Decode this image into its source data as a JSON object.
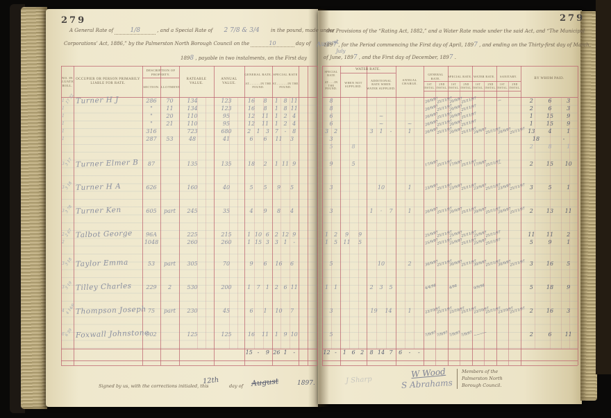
{
  "page": {
    "number_left": "279",
    "number_right": "279"
  },
  "preamble": {
    "left": {
      "l1a": "A General Rate of",
      "l1b": "1/8",
      "l1c": ", and a Special Rate of",
      "l1d": "2 7/8 & 3/4",
      "l1e": "in the pound, made under",
      "l2a": "Corporations’ Act, 1886,” by the Palmerston North Borough Council on the",
      "l2b": "10",
      "l2c": "day of",
      "l2d": "August",
      "l3a": "189",
      "l3b": "8",
      "l3c": ", payable in two instalments, on the First day"
    },
    "right": {
      "l1": "the Provisions of the “Rating Act, 1882,” and a Water Rate made under the said Act, and “The Municipal",
      "l2a": "189",
      "l2b": "7",
      "l2c": ", for the Period commencing the First day of April, 189",
      "l2d": "7",
      "l2e": ", and ending on the Thirty-first day of March,",
      "l3a": "of June, 189",
      "l3b": "7",
      "l3c": "July",
      "l3d": ", and the First day of December, 189",
      "l3e": "7",
      "l3f": "."
    }
  },
  "table": {
    "headers": {
      "roll": "No. in Valuation Roll.",
      "occupier": "Occupier or Person Primarily Liable for Rate.",
      "description": "Description of Property.",
      "section": "Section.",
      "allotment": "Allotment.",
      "rateable": "Rateable Value.",
      "annual": "Annual Value.",
      "general": "General Rate.",
      "general_sub": "at............in the pound.",
      "special": "Special Rate",
      "special_sub": "at............in the pound.",
      "special_pound": "Special Rate",
      "special_pound_sub": "at......in the pound.",
      "water": "Water Rate.",
      "not_supplied": "When Not Supplied.",
      "additional": "Additional Rate When Water Supplied.",
      "annual_charge": "Annual Charge.",
      "pay_groups": [
        "General Rate.",
        "Special Rate.",
        "Water Rate.",
        "Sanitary."
      ],
      "instal_first": "1st Instal.",
      "instal_second": "2nd Instal.",
      "by_whom": "By Whom Paid."
    },
    "rows": [
      {
        "roll": "1",
        "margin": "17 32",
        "name": "Turner H J",
        "sec": "286",
        "allot": "70",
        "rate": "134",
        "ann": "123",
        "gen": "16 8",
        "spec": "1 8 11",
        "spp": "8",
        "notsup": "",
        "addl": "",
        "chg": "",
        "dates": [
          "20/9/97",
          "25/11/97",
          "20/9/97",
          "25/11/97",
          "",
          "",
          "—",
          ""
        ],
        "total": "2 6 3",
        "pencil": false
      },
      {
        "roll": "1",
        "margin": "",
        "name": "",
        "sec": "\"",
        "allot": "11",
        "rate": "134",
        "ann": "123",
        "gen": "16 8",
        "spec": "1 8 11",
        "spp": "8",
        "notsup": "",
        "addl": "",
        "chg": "",
        "dates": [
          "20/9/97",
          "25/11/97",
          "20/9/97",
          "25/11/97",
          "",
          "",
          "",
          ""
        ],
        "total": "2 6 3",
        "pencil": false
      },
      {
        "roll": "1",
        "margin": "",
        "name": "",
        "sec": "\"",
        "allot": "20",
        "rate": "110",
        "ann": "95",
        "gen": "12 11",
        "spec": "1 2 4",
        "spp": "6",
        "notsup": "",
        "addl": "~",
        "chg": "",
        "dates": [
          "20/9/97",
          "25/11/97",
          "20/9/97",
          "25/11/97",
          "",
          "",
          "",
          ""
        ],
        "total": "1 15 9",
        "pencil": false
      },
      {
        "roll": "1",
        "margin": "",
        "name": "",
        "sec": "\"",
        "allot": "21",
        "rate": "110",
        "ann": "95",
        "gen": "12 11",
        "spec": "1 2 4",
        "spp": "6",
        "notsup": "",
        "addl": "~",
        "chg": "~",
        "dates": [
          "20/9/97",
          "25/11/97",
          "20/9/97",
          "25/11/97",
          "",
          "",
          "",
          ""
        ],
        "total": "1 15 9",
        "pencil": false
      },
      {
        "roll": "1",
        "margin": "",
        "name": "",
        "sec": "316",
        "allot": "",
        "rate": "723",
        "ann": "680",
        "gen": "2 1 3",
        "spec": "7 - 8",
        "spp": "3 2",
        "notsup": "",
        "addl": "3 1 -",
        "chg": "1",
        "dates": [
          "20/9/97",
          "25/11/97",
          "20/9/97",
          "25/11/97",
          "24/9/97",
          "25/11/97",
          "20/9/97",
          "25/11/97"
        ],
        "total": "13 4 1",
        "pencil": false
      },
      {
        "roll": "1",
        "margin": "",
        "name": "",
        "sec": "287",
        "allot": "53",
        "rate": "48",
        "ann": "41",
        "gen": "6 6",
        "spec": "11 3",
        "spp": "3",
        "notsup": "",
        "addl": "",
        "chg": "",
        "dates": [
          "",
          "",
          "",
          "",
          "",
          "",
          "",
          ""
        ],
        "total": "18 -",
        "pencil": false
      },
      {
        "roll": "",
        "margin": "",
        "name": "",
        "sec": "",
        "allot": "",
        "rate": "",
        "ann": "",
        "gen": "",
        "spec": "",
        "spp": "5",
        "notsup": "8",
        "addl": "",
        "chg": "",
        "dates": [
          "",
          "",
          "",
          "",
          "",
          "",
          "",
          ""
        ],
        "total": "2 8 1",
        "pencil": true
      },
      {
        "roll": "3",
        "margin": "3 17",
        "name": "Turner Elmer B",
        "sec": "87",
        "allot": "",
        "rate": "135",
        "ann": "135",
        "gen": "18 2",
        "spec": "1 11 9",
        "spp": "9",
        "notsup": "5",
        "addl": "",
        "chg": "",
        "dates": [
          "17/9/97",
          "25/11/97",
          "17/9/97",
          "25/11/97",
          "17/9/97",
          "25/11/97",
          "—",
          ""
        ],
        "total": "2 15 10",
        "pencil": false
      },
      {
        "roll": "3",
        "margin": "3 18",
        "name": "Turner H A",
        "sec": "626",
        "allot": "",
        "rate": "160",
        "ann": "40",
        "gen": "5 5",
        "spec": "9 5",
        "spp": "3",
        "notsup": "",
        "addl": "10",
        "chg": "1",
        "dates": [
          "23/9/97",
          "25/11/97",
          "23/9/97",
          "25/11/97",
          "23/9/97",
          "25/11/97",
          "23/9/97",
          "25/11/97"
        ],
        "total": "3 5 1",
        "pencil": false
      },
      {
        "roll": "3",
        "margin": "3 78",
        "name": "Turner Ken",
        "sec": "605",
        "allot": "part",
        "rate": "245",
        "ann": "35",
        "gen": "4 9",
        "spec": "8 4",
        "spp": "3",
        "notsup": "",
        "addl": "1 · 7",
        "chg": "1",
        "dates": [
          "20/9/97",
          "25/11/97",
          "20/9/97",
          "25/11/97",
          "20/9/97",
          "25/11/97",
          "20/9/97",
          "25/11/97"
        ],
        "total": "2 13 11",
        "pencil": false
      },
      {
        "roll": "2",
        "margin": "2 67",
        "name": "Talbot George",
        "sec": "96A",
        "allot": "",
        "rate": "225",
        "ann": "215",
        "gen": "1 10 6",
        "spec": "2 12 9",
        "spp": "1 2",
        "notsup": "9 9",
        "addl": "",
        "chg": "",
        "dates": [
          "25/9/97",
          "25/11/97",
          "25/9/97",
          "25/11/97",
          "25/9/97",
          "25/11/97",
          "",
          ""
        ],
        "total": "11 11 2",
        "pencil": false
      },
      {
        "roll": "2",
        "margin": "",
        "name": "",
        "sec": "1048",
        "allot": "",
        "rate": "260",
        "ann": "260",
        "gen": "1 15 3",
        "spec": "3 1 -",
        "spp": "1 5",
        "notsup": "11 5",
        "addl": "",
        "chg": "",
        "dates": [
          "25/9/97",
          "25/11/97",
          "25/9/97",
          "25/11/97",
          "25/9/97",
          "25/11/97",
          "",
          ""
        ],
        "total": "5 9 1",
        "pencil": false
      },
      {
        "roll": "3",
        "margin": "3 18",
        "name": "Taylor Emma",
        "sec": "53",
        "allot": "part",
        "rate": "305",
        "ann": "70",
        "gen": "9 6",
        "spec": "16 6",
        "spp": "5",
        "notsup": "",
        "addl": "10",
        "chg": "2",
        "dates": [
          "30/9/97",
          "25/11/97",
          "30/9/97",
          "25/11/97",
          "30/9/97",
          "25/11/97",
          "30/9/97",
          "25/11/97"
        ],
        "total": "3 16 5",
        "pencil": false
      },
      {
        "roll": "3",
        "margin": "3 19",
        "name": "Tilley Charles",
        "sec": "229",
        "allot": "2",
        "rate": "530",
        "ann": "200",
        "gen": "1 7 1",
        "spec": "2 6 11",
        "spp": "1 1",
        "notsup": "",
        "addl": "2 3 5",
        "chg": "",
        "dates": [
          "4/4/98",
          "",
          "4/98",
          "",
          "9/9/98",
          "",
          "",
          ""
        ],
        "total": "5 18 9",
        "pencil": false
      },
      {
        "roll": "4",
        "margin": "4 14/6",
        "name": "Thompson Joseph",
        "sec": "75",
        "allot": "part",
        "rate": "230",
        "ann": "45",
        "gen": "6 1",
        "spec": "10 7",
        "spp": "3",
        "notsup": "",
        "addl": "19 14",
        "chg": "1",
        "dates": [
          "23/10/97",
          "25/11/97",
          "23/10/97",
          "25/11/97",
          "23/10/97",
          "25/11/97",
          "23/10/97",
          "25/11/97"
        ],
        "total": "2 16 3",
        "pencil": false
      },
      {
        "roll": "6",
        "margin": "6 39",
        "name": "Foxwall Johnstone",
        "sec": "902",
        "allot": "",
        "rate": "125",
        "ann": "125",
        "gen": "16 11",
        "spec": "1 9 10",
        "spp": "5",
        "notsup": "",
        "addl": "",
        "chg": "",
        "dates": [
          "7/9/97",
          "7/9/97",
          "7/9/97",
          "7/9/97",
          "~———",
          "",
          "",
          ""
        ],
        "total": "2 6 11",
        "pencil": false
      }
    ],
    "totals": {
      "general": "15 - 9",
      "special": "26 1 -",
      "special_pound": "12 -",
      "not_supplied": "1 6 2",
      "additional": "8 14 7",
      "annual_charge": "6 - -"
    }
  },
  "signature": {
    "printed": "Signed by us, with the corrections initialed, this",
    "day": "12th",
    "day_of": "day of",
    "month": "August",
    "year": "1897.",
    "gutter_sig": "J Sharp",
    "sig1": "W Wood",
    "sig2": "S Abrahams",
    "note1": "Members of the",
    "note2": "Palmerston North",
    "note3": "Borough Council."
  }
}
